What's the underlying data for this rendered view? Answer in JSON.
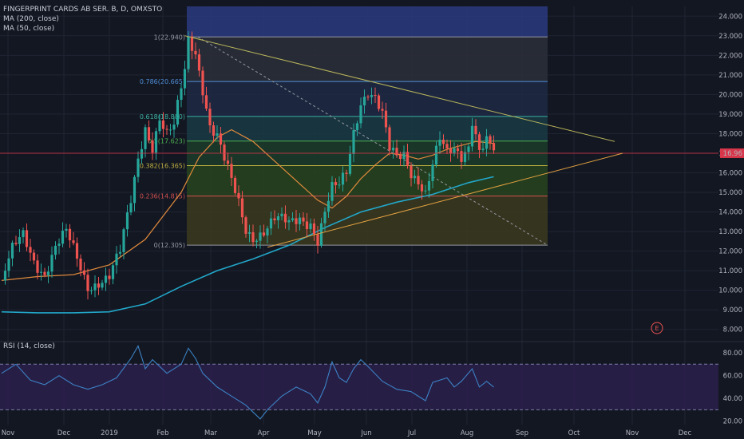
{
  "legend": {
    "title": "FINGERPRINT CARDS AB SER. B, D, OMXSTO",
    "ma200": "MA (200, close)",
    "ma50": "MA (50, close)",
    "rsi": "RSI (14, close)"
  },
  "colors": {
    "background": "#131722",
    "grid": "#1f2433",
    "up": "#26a69a",
    "down": "#ef5350",
    "ma200": "#22a7c9",
    "ma50": "#e08a3c",
    "rsi": "#3b82c4",
    "rsi_band": "#2a1f4a",
    "trendline": "#b7b35a",
    "price_line": "#d8364a"
  },
  "chart_data": [
    {
      "type": "candlestick",
      "title": "FINGERPRINT CARDS AB SER. B, D, OMXSTO",
      "x_labels": [
        "Nov",
        "Dec",
        "2019",
        "Feb",
        "Mar",
        "Apr",
        "May",
        "Jun",
        "Jul",
        "Aug",
        "Sep",
        "Oct",
        "Nov",
        "Dec"
      ],
      "y_ticks": [
        "8.000",
        "9.000",
        "10.000",
        "11.000",
        "12.000",
        "13.000",
        "14.000",
        "15.000",
        "16.000",
        "17.000",
        "18.000",
        "19.000",
        "20.000",
        "21.000",
        "22.000",
        "23.000",
        "24.000"
      ],
      "ylim": [
        7.5,
        24.5
      ],
      "last_price": 17.0,
      "last_price_label": "16.96",
      "close_path": [
        [
          0,
          10.5
        ],
        [
          3,
          11.9
        ],
        [
          6,
          12.7
        ],
        [
          9,
          11.6
        ],
        [
          12,
          11.0
        ],
        [
          15,
          12.2
        ],
        [
          18,
          12.8
        ],
        [
          21,
          11.5
        ],
        [
          24,
          10.3
        ],
        [
          27,
          10.6
        ],
        [
          30,
          10.7
        ],
        [
          33,
          11.8
        ],
        [
          36,
          14.5
        ],
        [
          38,
          16.8
        ],
        [
          40,
          18.5
        ],
        [
          42,
          17.5
        ],
        [
          44,
          18.8
        ],
        [
          46,
          17.8
        ],
        [
          48,
          18.2
        ],
        [
          51,
          21.2
        ],
        [
          52,
          22.8
        ],
        [
          54,
          22.3
        ],
        [
          56,
          20.5
        ],
        [
          58,
          18.5
        ],
        [
          60,
          17.8
        ],
        [
          62,
          16.5
        ],
        [
          64,
          15.4
        ],
        [
          66,
          14.4
        ],
        [
          68,
          13.2
        ],
        [
          70,
          12.9
        ],
        [
          73,
          13.1
        ],
        [
          76,
          13.5
        ],
        [
          78,
          13.4
        ],
        [
          80,
          13.3
        ],
        [
          83,
          13.8
        ],
        [
          86,
          13.6
        ],
        [
          88,
          12.6
        ],
        [
          90,
          13.9
        ],
        [
          92,
          15.0
        ],
        [
          94,
          15.2
        ],
        [
          96,
          16.0
        ],
        [
          98,
          18.2
        ],
        [
          100,
          19.8
        ],
        [
          102,
          20.3
        ],
        [
          104,
          19.8
        ],
        [
          106,
          18.8
        ],
        [
          108,
          17.0
        ],
        [
          110,
          16.7
        ],
        [
          112,
          17.0
        ],
        [
          114,
          16.2
        ],
        [
          116,
          15.8
        ],
        [
          118,
          15.0
        ],
        [
          120,
          16.3
        ],
        [
          122,
          17.5
        ],
        [
          124,
          16.8
        ],
        [
          126,
          17.2
        ],
        [
          128,
          17.0
        ],
        [
          130,
          17.6
        ],
        [
          131,
          18.9
        ],
        [
          133,
          17.2
        ],
        [
          135,
          17.5
        ],
        [
          137,
          16.96
        ]
      ],
      "ma200": [
        [
          0,
          8.9
        ],
        [
          10,
          8.85
        ],
        [
          20,
          8.85
        ],
        [
          30,
          8.9
        ],
        [
          40,
          9.3
        ],
        [
          50,
          10.2
        ],
        [
          60,
          11.0
        ],
        [
          70,
          11.6
        ],
        [
          80,
          12.3
        ],
        [
          90,
          13.2
        ],
        [
          100,
          14.0
        ],
        [
          110,
          14.5
        ],
        [
          120,
          14.9
        ],
        [
          130,
          15.5
        ],
        [
          137,
          15.8
        ]
      ],
      "ma50": [
        [
          0,
          10.5
        ],
        [
          10,
          10.7
        ],
        [
          20,
          10.8
        ],
        [
          30,
          11.3
        ],
        [
          40,
          12.6
        ],
        [
          50,
          15.0
        ],
        [
          55,
          16.8
        ],
        [
          60,
          17.8
        ],
        [
          64,
          18.2
        ],
        [
          70,
          17.6
        ],
        [
          76,
          16.6
        ],
        [
          82,
          15.6
        ],
        [
          88,
          14.6
        ],
        [
          92,
          14.2
        ],
        [
          96,
          14.8
        ],
        [
          100,
          15.7
        ],
        [
          104,
          16.4
        ],
        [
          108,
          17.0
        ],
        [
          112,
          16.9
        ],
        [
          116,
          16.7
        ],
        [
          120,
          16.9
        ],
        [
          124,
          17.2
        ],
        [
          128,
          17.4
        ],
        [
          132,
          17.6
        ],
        [
          137,
          17.5
        ]
      ],
      "fibonacci": [
        {
          "label": "1(22.940)",
          "value": 22.94
        },
        {
          "label": "0.786(20.665)",
          "value": 20.665
        },
        {
          "label": "0.618(18.880)",
          "value": 18.88
        },
        {
          "label": "0.5(17.623)",
          "value": 17.623
        },
        {
          "label": "0.382(16.365)",
          "value": 16.365
        },
        {
          "label": "0.236(14.815)",
          "value": 14.815
        },
        {
          "label": "0(12.305)",
          "value": 12.305
        }
      ],
      "fib_band_top": 24.5,
      "fib_colors": [
        "#2c3a80",
        "#2b2f3a",
        "#1e2a44",
        "#1a3a44",
        "#1c3c2a",
        "#28441e",
        "#3c3a1e",
        "#4a2030"
      ]
    },
    {
      "type": "line",
      "title": "RSI (14, close)",
      "y_ticks": [
        "20.00",
        "40.00",
        "60.00",
        "80.00"
      ],
      "ylim": [
        17,
        87
      ],
      "bands": [
        30,
        70
      ],
      "values": [
        [
          0,
          62
        ],
        [
          4,
          70
        ],
        [
          8,
          56
        ],
        [
          12,
          52
        ],
        [
          16,
          60
        ],
        [
          20,
          52
        ],
        [
          24,
          48
        ],
        [
          28,
          52
        ],
        [
          32,
          58
        ],
        [
          36,
          75
        ],
        [
          38,
          86
        ],
        [
          40,
          66
        ],
        [
          42,
          74
        ],
        [
          46,
          62
        ],
        [
          50,
          70
        ],
        [
          52,
          84
        ],
        [
          54,
          75
        ],
        [
          56,
          62
        ],
        [
          60,
          50
        ],
        [
          64,
          42
        ],
        [
          68,
          34
        ],
        [
          70,
          28
        ],
        [
          72,
          22
        ],
        [
          74,
          30
        ],
        [
          78,
          42
        ],
        [
          82,
          50
        ],
        [
          86,
          44
        ],
        [
          88,
          36
        ],
        [
          90,
          50
        ],
        [
          92,
          72
        ],
        [
          94,
          58
        ],
        [
          96,
          54
        ],
        [
          98,
          66
        ],
        [
          100,
          74
        ],
        [
          102,
          68
        ],
        [
          106,
          55
        ],
        [
          110,
          48
        ],
        [
          114,
          46
        ],
        [
          118,
          38
        ],
        [
          120,
          54
        ],
        [
          124,
          58
        ],
        [
          126,
          50
        ],
        [
          128,
          55
        ],
        [
          131,
          66
        ],
        [
          133,
          50
        ],
        [
          135,
          55
        ],
        [
          137,
          50
        ]
      ]
    }
  ]
}
